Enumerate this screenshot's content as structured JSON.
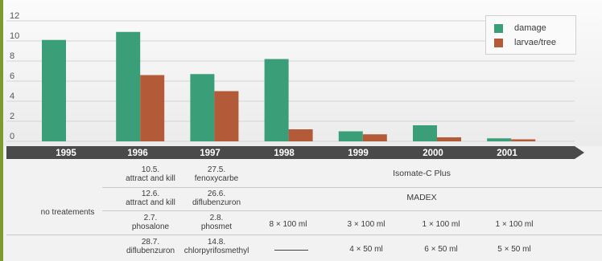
{
  "chart_data": {
    "type": "bar",
    "categories": [
      "1995",
      "1996",
      "1997",
      "1998",
      "1999",
      "2000",
      "2001"
    ],
    "series": [
      {
        "name": "damage",
        "values": [
          10.1,
          10.9,
          6.7,
          8.2,
          1.0,
          1.6,
          0.3
        ],
        "color": "#3a9e78"
      },
      {
        "name": "larvae/tree",
        "values": [
          null,
          6.6,
          5.0,
          1.2,
          0.7,
          0.4,
          0.2
        ],
        "color": "#b35a38"
      }
    ],
    "yticks": [
      0,
      2,
      4,
      6,
      8,
      10,
      12
    ],
    "ylim": [
      0,
      12.5
    ],
    "grid": true,
    "legend_position": "top-right"
  },
  "table": {
    "row_label": "no treatements",
    "rows": [
      {
        "c1995": [
          "10.5.",
          "attract and kill"
        ],
        "c1996": [
          "27.5.",
          "fenoxycarbe"
        ],
        "wide": "Isomate-C Plus"
      },
      {
        "c1995": [
          "12.6.",
          "attract and kill"
        ],
        "c1996": [
          "26.6.",
          "diflubenzuron"
        ],
        "wide": "MADEX"
      },
      {
        "c1995": [
          "2.7.",
          "phosalone"
        ],
        "c1996": [
          "2.8.",
          "phosmet"
        ],
        "c1998": "8 × 100 ml",
        "c1999": "3 × 100 ml",
        "c2000": "1 × 100 ml",
        "c2001": "1 × 100 ml"
      },
      {
        "c1995": [
          "28.7.",
          "diflubenzuron"
        ],
        "c1996": [
          "14.8.",
          "chlorpyrifosmethyl"
        ],
        "c1999": "4 × 50 ml",
        "c2000": "6 × 50 ml",
        "c2001": "5 × 50 ml"
      }
    ]
  },
  "colors": {
    "axis_band": "#4a4a4a",
    "grid": "#d4d4d4",
    "strip": "#7c9a2e"
  }
}
